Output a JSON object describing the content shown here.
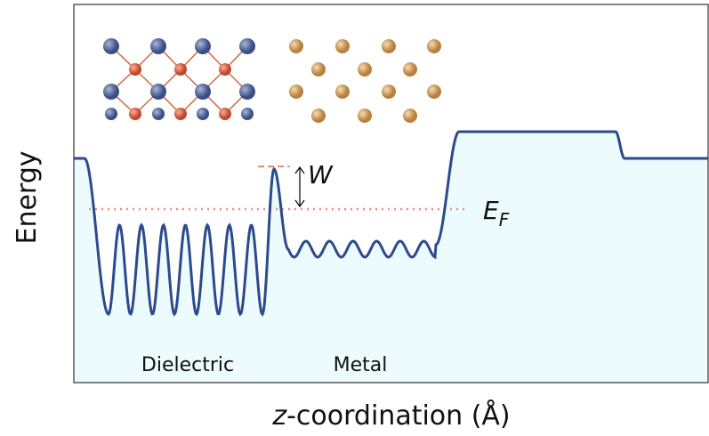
{
  "axes": {
    "y_label": "Energy",
    "x_label_var": "z",
    "x_label_rest": "-coordination (Å)"
  },
  "regions": [
    "Dielectric",
    "Metal"
  ],
  "annotations": {
    "barrier": "W",
    "fermi_symbol": "E",
    "fermi_subscript": "F"
  }
}
